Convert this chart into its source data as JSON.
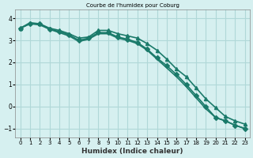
{
  "title": "Courbe de l'humidex pour Coburg",
  "xlabel": "Humidex (Indice chaleur)",
  "ylabel": "",
  "bg_color": "#d6f0f0",
  "grid_color": "#b0d8d8",
  "line_color": "#1a7a6a",
  "xlim": [
    -0.5,
    23.5
  ],
  "ylim": [
    -1.4,
    4.4
  ],
  "yticks": [
    -1,
    0,
    1,
    2,
    3,
    4
  ],
  "xticks": [
    0,
    1,
    2,
    3,
    4,
    5,
    6,
    7,
    8,
    9,
    10,
    11,
    12,
    13,
    14,
    15,
    16,
    17,
    18,
    19,
    20,
    21,
    22,
    23
  ],
  "series": [
    {
      "x": [
        0,
        1,
        2,
        3,
        4,
        5,
        6,
        7,
        8,
        9,
        10,
        11,
        12,
        13,
        14,
        15,
        16,
        17,
        18,
        19,
        20,
        21,
        22,
        23
      ],
      "y": [
        3.55,
        3.8,
        3.75,
        3.55,
        3.45,
        3.3,
        3.1,
        3.15,
        3.45,
        3.45,
        3.3,
        3.2,
        3.1,
        2.85,
        2.55,
        2.15,
        1.7,
        1.35,
        0.85,
        0.35,
        -0.05,
        -0.45,
        -0.65,
        -0.8
      ],
      "marker": "^",
      "markersize": 3
    },
    {
      "x": [
        0,
        1,
        2,
        3,
        4,
        5,
        6,
        7,
        8,
        9,
        10,
        11,
        12,
        13,
        14,
        15,
        16,
        17,
        18,
        19,
        20,
        21,
        22,
        23
      ],
      "y": [
        3.55,
        3.75,
        3.75,
        3.5,
        3.4,
        3.25,
        3.0,
        3.1,
        3.35,
        3.35,
        3.15,
        3.05,
        2.9,
        2.6,
        2.2,
        1.85,
        1.45,
        1.0,
        0.5,
        0.0,
        -0.5,
        -0.65,
        -0.85,
        -1.0
      ],
      "marker": "D",
      "markersize": 3
    },
    {
      "x": [
        0,
        1,
        2,
        3,
        4,
        5,
        6,
        7,
        8,
        9,
        10,
        11,
        12,
        13,
        14,
        15,
        16,
        17,
        18,
        19,
        20,
        21,
        22,
        23
      ],
      "y": [
        3.55,
        3.75,
        3.7,
        3.5,
        3.35,
        3.2,
        2.95,
        3.05,
        3.3,
        3.3,
        3.1,
        3.0,
        2.85,
        2.55,
        2.15,
        1.75,
        1.35,
        0.9,
        0.4,
        -0.1,
        -0.5,
        -0.65,
        -0.85,
        -1.0
      ],
      "marker": null,
      "markersize": 0
    }
  ]
}
